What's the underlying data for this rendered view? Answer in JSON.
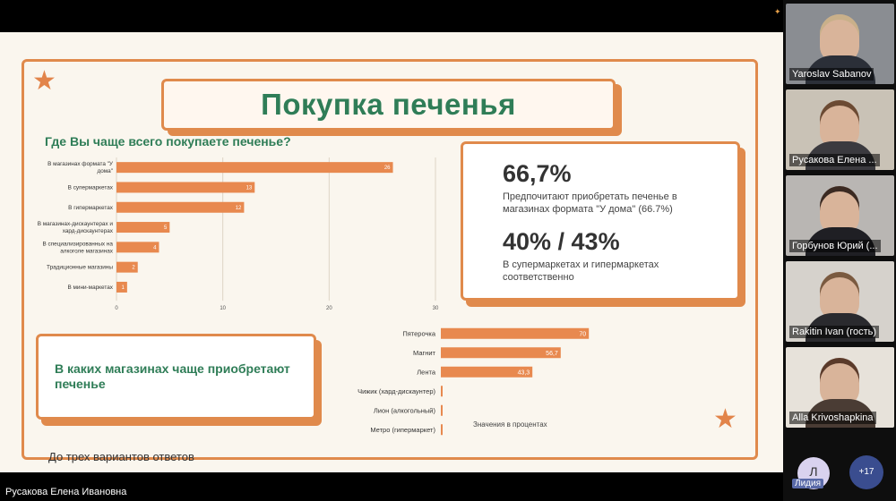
{
  "slide": {
    "title": "Покупка печенья",
    "question": "Где Вы чаще всего покупаете печенье?",
    "stat1_value": "66,7%",
    "stat1_text": "Предпочитают приобретать печенье в магазинах формата \"У дома\" (66.7%)",
    "stat2_value": "40% / 43%",
    "stat2_text": "В супермаркетах и гипермаркетах соответственно",
    "shops_heading": "В каких магазинах чаще приобретают печенье",
    "note": "Значения в процентах",
    "footnote": "До трех вариантов ответов"
  },
  "colors": {
    "accent": "#e08a4c",
    "bar": "#e8894f",
    "title_green": "#2f7d57"
  },
  "chart_data": [
    {
      "type": "bar",
      "orientation": "horizontal",
      "categories": [
        [
          "В магазинах формата \"У",
          "дома\""
        ],
        [
          "В супермаркетах"
        ],
        [
          "В гипермаркетах"
        ],
        [
          "В магазинах-дискаунтерах и",
          "хард-дискаунтерах"
        ],
        [
          "В специализированных на",
          "алкоголе магазинах"
        ],
        [
          "Традиционные магазины"
        ],
        [
          "В мини-маркетах"
        ]
      ],
      "values": [
        26,
        13,
        12,
        5,
        4,
        2,
        1
      ],
      "data_labels": [
        "26",
        "13",
        "12",
        "5",
        "4",
        "2",
        "1"
      ],
      "xlim": [
        0,
        30
      ],
      "xticks": [
        "0",
        "10",
        "20",
        "30"
      ],
      "grid": true
    },
    {
      "type": "bar",
      "orientation": "horizontal",
      "categories": [
        "Пятерочка",
        "Магнит",
        "Лента",
        "Чижик (хард-дискаунтер)",
        "Лион (алкогольный)",
        "Метро (гипермаркет)"
      ],
      "values": [
        70,
        56.7,
        43.3,
        0,
        0,
        0
      ],
      "data_labels": [
        "70",
        "56,7",
        "43,3",
        "",
        "",
        ""
      ],
      "xlim": [
        0,
        100
      ]
    }
  ],
  "presenter": "Русакова Елена Ивановна",
  "participants": [
    {
      "name": "Yaroslav Sabanov",
      "bg": "#8a8d92",
      "shirt": "#2b2f38",
      "hair": "#c9b08a"
    },
    {
      "name": "Русакова Елена ...",
      "bg": "#c9c2b6",
      "shirt": "#3b3a3f",
      "hair": "#6b4a33"
    },
    {
      "name": "Горбунов Юрий (...",
      "bg": "#b9b6b3",
      "shirt": "#1f1f24",
      "hair": "#3b2a22"
    },
    {
      "name": "Rakitin Ivan (гость)",
      "bg": "#d6d2cc",
      "shirt": "#2a2a2e",
      "hair": "#7a5a40"
    },
    {
      "name": "Alla Krivoshapkina",
      "bg": "#e7e2da",
      "shirt": "#4a3c34",
      "hair": "#5a3a2a"
    }
  ],
  "avatar": {
    "initial": "Л",
    "name": "Лидия"
  },
  "more_participants": "+17"
}
